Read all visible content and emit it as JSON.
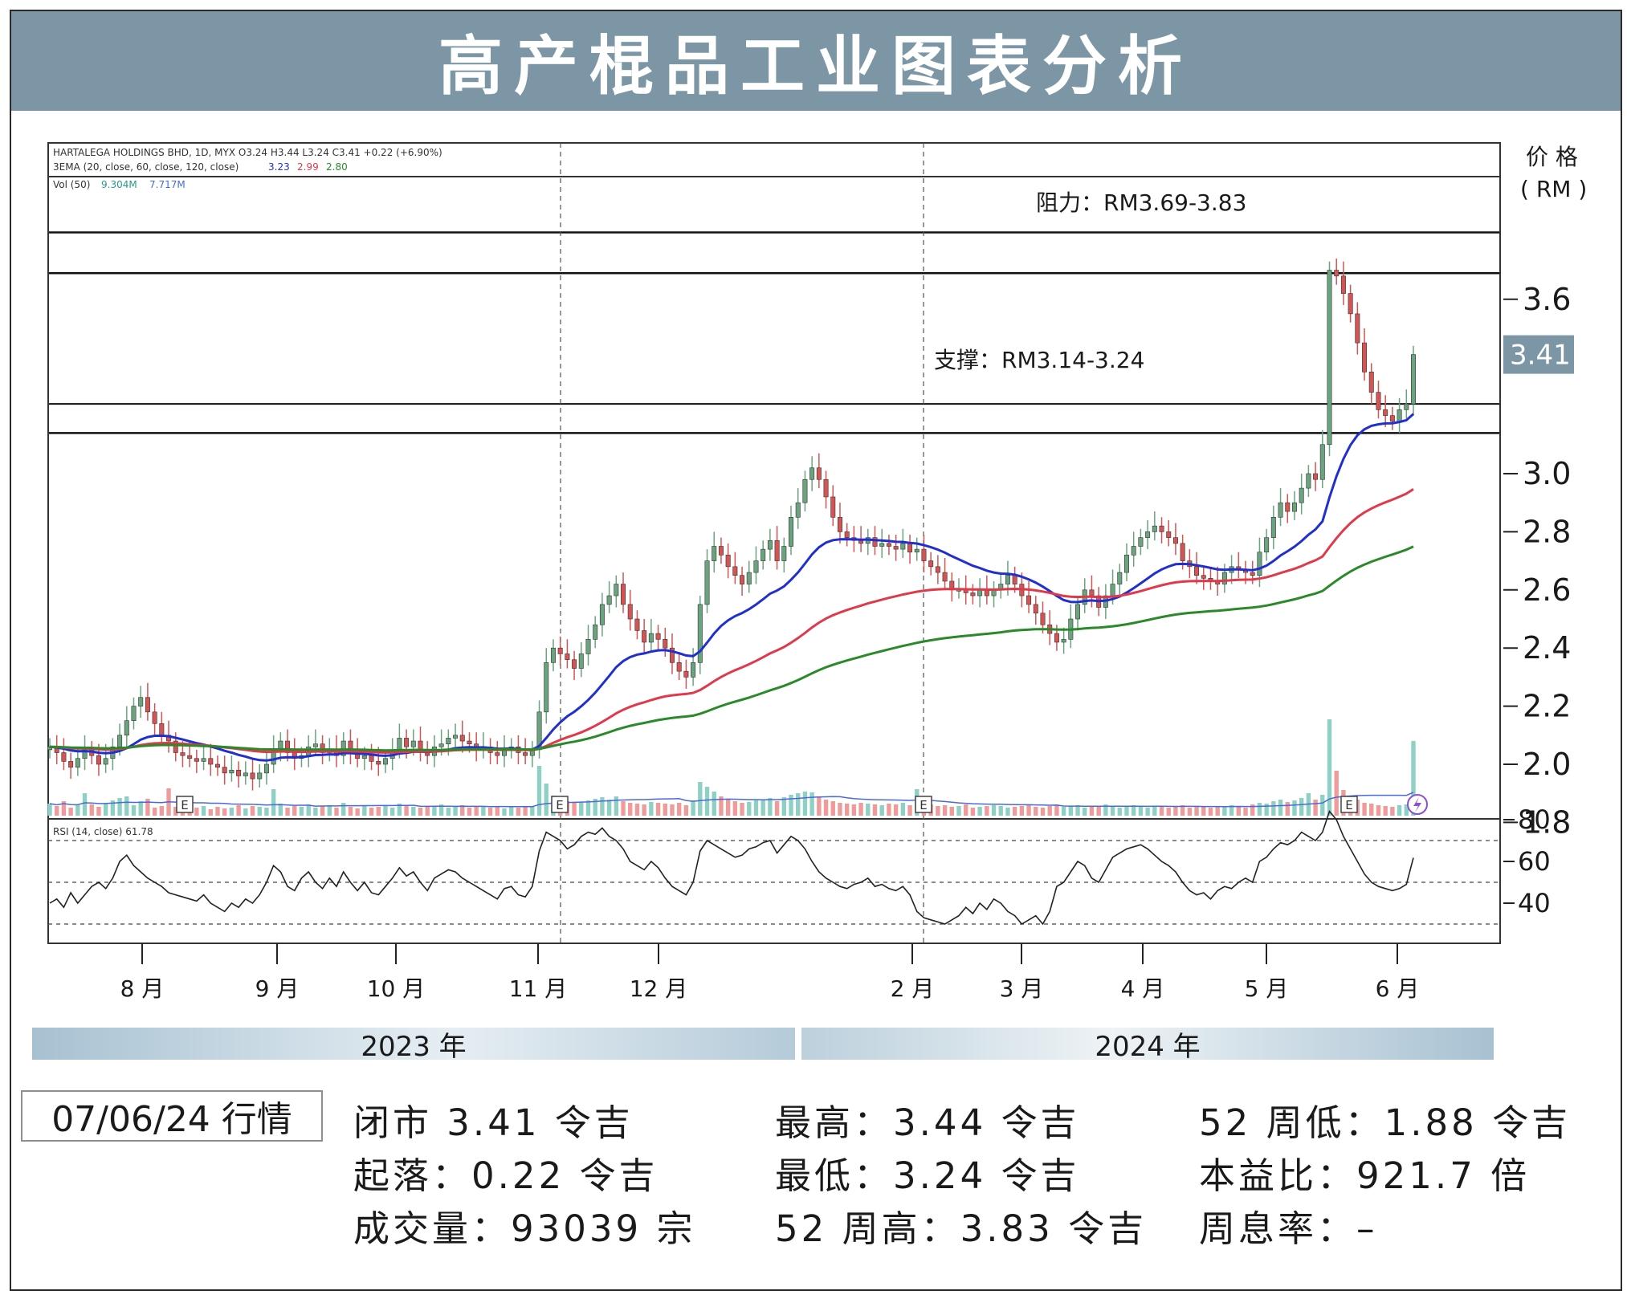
{
  "title": "高产棍品工业图表分析",
  "legend": {
    "line1": "HARTALEGA HOLDINGS BHD, 1D, MYX  O3.24  H3.44  L3.24  C3.41  +0.22 (+6.90%)",
    "line2_prefix": "3EMA (20, close, 60, close, 120, close)",
    "ema20_value": "3.23",
    "ema60_value": "2.99",
    "ema120_value": "2.80",
    "vol_prefix": "Vol (50)",
    "vol_value1": "9.304M",
    "vol_value2": "7.717M",
    "rsi_label": "RSI (14, close)  61.78"
  },
  "price_axis_title_1": "价 格",
  "price_axis_title_2": "( RM )",
  "last_price_badge": "3.41",
  "resistance_label": "阻力：RM3.69-3.83",
  "support_label": "支撑：RM3.14-3.24",
  "earnings_marker": "E",
  "dividend_marker": "E",
  "years": [
    "2023 年",
    "2024 年"
  ],
  "date_label": "07/06/24 行情",
  "stats": {
    "close": "闭市 3.41 令吉",
    "change": "起落：0.22 令吉",
    "volume": "成交量：93039 宗",
    "high": "最高：3.44 令吉",
    "low": "最低：3.24 令吉",
    "high52": "52 周高：3.83 令吉",
    "low52": "52 周低：1.88 令吉",
    "pe": "本益比：921.7 倍",
    "yield": "周息率：–"
  },
  "colors": {
    "title_bar": "#7d96a6",
    "up_candle": "#6aa47e",
    "down_candle": "#d45454",
    "ema20": "#1f2fd0",
    "ema60": "#e0394a",
    "ema120": "#2a8a2a",
    "vol_up": "#8ed0c4",
    "vol_down": "#f09a9a",
    "vol_ma": "#4a6ad8",
    "price_badge": "#7d96a6"
  },
  "chart_data": {
    "type": "candlestick",
    "title": "HARTALEGA HOLDINGS BHD, 1D, MYX",
    "x_months": [
      "8 月",
      "9 月",
      "10 月",
      "11 月",
      "12 月",
      "2 月",
      "3 月",
      "4 月",
      "5 月",
      "6 月"
    ],
    "price_ticks": [
      3.6,
      3.0,
      2.8,
      2.6,
      2.4,
      2.2,
      2.0,
      1.8
    ],
    "price_tick_labels": [
      "3.6",
      "3.0",
      "2.8",
      "2.6",
      "2.4",
      "2.2",
      "2.0",
      "1.8"
    ],
    "price_range": [
      1.62,
      3.82
    ],
    "rsi_ticks": [
      80,
      60,
      40
    ],
    "rsi_tick_labels": [
      "80",
      "60",
      "40"
    ],
    "rsi_range": [
      28,
      85
    ],
    "rsi_levels": [
      70,
      50,
      30
    ],
    "resistance_zone": [
      3.69,
      3.83
    ],
    "support_zone": [
      3.14,
      3.24
    ],
    "last": {
      "open": 3.24,
      "high": 3.44,
      "low": 3.24,
      "close": 3.41,
      "change": 0.22,
      "change_pct": 6.9
    },
    "close_series": [
      2.06,
      2.04,
      2.01,
      1.99,
      2.02,
      2.05,
      2.03,
      2.0,
      2.02,
      2.06,
      2.1,
      2.15,
      2.2,
      2.23,
      2.18,
      2.14,
      2.1,
      2.08,
      2.04,
      2.03,
      2.02,
      2.01,
      2.02,
      2.0,
      1.99,
      1.97,
      1.98,
      1.96,
      1.97,
      1.95,
      1.97,
      2.0,
      2.05,
      2.08,
      2.04,
      2.02,
      2.03,
      2.06,
      2.07,
      2.04,
      2.05,
      2.03,
      2.08,
      2.04,
      2.02,
      2.03,
      2.01,
      2.0,
      2.02,
      2.05,
      2.09,
      2.06,
      2.08,
      2.05,
      2.03,
      2.06,
      2.07,
      2.09,
      2.1,
      2.08,
      2.07,
      2.05,
      2.06,
      2.04,
      2.03,
      2.05,
      2.06,
      2.04,
      2.03,
      2.05,
      2.18,
      2.35,
      2.4,
      2.38,
      2.36,
      2.33,
      2.38,
      2.43,
      2.48,
      2.55,
      2.58,
      2.62,
      2.55,
      2.5,
      2.46,
      2.42,
      2.45,
      2.43,
      2.4,
      2.35,
      2.32,
      2.3,
      2.35,
      2.55,
      2.7,
      2.75,
      2.72,
      2.68,
      2.65,
      2.62,
      2.66,
      2.7,
      2.74,
      2.77,
      2.7,
      2.75,
      2.85,
      2.9,
      2.98,
      3.02,
      2.98,
      2.92,
      2.85,
      2.8,
      2.78,
      2.77,
      2.76,
      2.78,
      2.75,
      2.76,
      2.75,
      2.74,
      2.76,
      2.73,
      2.74,
      2.7,
      2.68,
      2.66,
      2.63,
      2.6,
      2.6,
      2.59,
      2.58,
      2.6,
      2.58,
      2.6,
      2.62,
      2.65,
      2.62,
      2.58,
      2.55,
      2.52,
      2.48,
      2.45,
      2.42,
      2.43,
      2.5,
      2.55,
      2.6,
      2.58,
      2.54,
      2.58,
      2.62,
      2.66,
      2.72,
      2.75,
      2.78,
      2.8,
      2.82,
      2.8,
      2.78,
      2.76,
      2.7,
      2.68,
      2.65,
      2.64,
      2.63,
      2.62,
      2.66,
      2.68,
      2.67,
      2.66,
      2.65,
      2.73,
      2.78,
      2.85,
      2.9,
      2.87,
      2.9,
      2.95,
      3.0,
      2.98,
      3.1,
      3.7,
      3.68,
      3.62,
      3.55,
      3.45,
      3.35,
      3.28,
      3.22,
      3.2,
      3.18,
      3.22,
      3.24,
      3.41
    ],
    "rsi_series": [
      40,
      42,
      38,
      45,
      40,
      44,
      48,
      50,
      47,
      52,
      60,
      63,
      58,
      55,
      52,
      50,
      48,
      45,
      44,
      43,
      42,
      41,
      44,
      40,
      38,
      36,
      40,
      38,
      42,
      40,
      44,
      50,
      58,
      55,
      48,
      46,
      52,
      55,
      50,
      47,
      52,
      48,
      55,
      50,
      46,
      50,
      45,
      44,
      48,
      52,
      57,
      53,
      55,
      50,
      46,
      52,
      54,
      56,
      55,
      52,
      50,
      48,
      46,
      44,
      42,
      47,
      48,
      44,
      43,
      48,
      65,
      74,
      72,
      70,
      66,
      68,
      72,
      74,
      73,
      76,
      72,
      70,
      66,
      60,
      58,
      56,
      60,
      57,
      52,
      48,
      46,
      44,
      50,
      65,
      70,
      68,
      66,
      64,
      62,
      63,
      66,
      67,
      69,
      70,
      64,
      68,
      72,
      70,
      66,
      60,
      55,
      52,
      50,
      48,
      47,
      49,
      50,
      52,
      48,
      49,
      47,
      46,
      48,
      44,
      36,
      33,
      32,
      31,
      30,
      32,
      34,
      38,
      35,
      40,
      37,
      42,
      40,
      36,
      34,
      30,
      32,
      34,
      30,
      36,
      48,
      50,
      55,
      60,
      58,
      52,
      50,
      56,
      62,
      64,
      66,
      67,
      68,
      66,
      63,
      60,
      58,
      55,
      50,
      46,
      44,
      45,
      42,
      46,
      48,
      47,
      50,
      52,
      50,
      60,
      62,
      66,
      69,
      68,
      70,
      74,
      72,
      70,
      74,
      84,
      80,
      72,
      66,
      60,
      54,
      50,
      48,
      47,
      46,
      47,
      49,
      61.78
    ],
    "volume_series_m": [
      1.5,
      1.2,
      1.8,
      1.0,
      1.3,
      2.8,
      1.4,
      1.1,
      1.6,
      1.9,
      2.2,
      2.4,
      1.3,
      1.8,
      2.1,
      1.0,
      1.2,
      3.4,
      1.1,
      1.0,
      0.9,
      1.0,
      1.2,
      0.8,
      1.1,
      0.9,
      1.0,
      1.3,
      0.9,
      1.2,
      1.1,
      1.0,
      3.3,
      1.5,
      1.0,
      1.2,
      1.1,
      1.4,
      1.0,
      1.2,
      1.3,
      1.0,
      1.6,
      1.1,
      0.9,
      1.2,
      1.0,
      1.1,
      1.3,
      1.0,
      1.5,
      1.2,
      1.1,
      1.0,
      1.2,
      1.1,
      1.4,
      1.0,
      1.1,
      1.3,
      1.0,
      1.2,
      1.1,
      1.0,
      1.2,
      0.9,
      1.1,
      1.0,
      1.2,
      1.1,
      6.2,
      4.0,
      2.5,
      2.0,
      1.8,
      1.6,
      1.7,
      1.9,
      2.1,
      2.3,
      2.0,
      2.4,
      1.8,
      1.6,
      1.5,
      1.4,
      1.7,
      1.6,
      1.5,
      1.4,
      1.6,
      1.3,
      1.9,
      4.2,
      3.6,
      3.0,
      2.4,
      2.0,
      1.8,
      1.6,
      1.7,
      1.9,
      2.0,
      2.2,
      1.8,
      2.3,
      2.6,
      2.8,
      3.0,
      2.9,
      2.4,
      2.0,
      1.8,
      1.6,
      1.5,
      1.4,
      1.6,
      1.5,
      1.4,
      1.3,
      1.5,
      1.4,
      1.6,
      1.3,
      3.3,
      1.5,
      1.4,
      1.2,
      1.3,
      1.1,
      1.2,
      1.4,
      1.0,
      1.1,
      1.2,
      1.3,
      1.2,
      1.0,
      1.1,
      1.2,
      1.3,
      1.1,
      1.0,
      1.2,
      1.4,
      1.1,
      1.2,
      1.3,
      1.0,
      1.1,
      1.2,
      1.4,
      1.1,
      1.0,
      1.2,
      1.3,
      1.1,
      1.0,
      1.2,
      1.1,
      1.0,
      1.1,
      1.3,
      1.0,
      1.2,
      1.1,
      1.0,
      1.2,
      1.1,
      1.3,
      1.2,
      1.0,
      1.4,
      1.6,
      1.5,
      1.8,
      2.0,
      1.7,
      1.9,
      2.2,
      2.8,
      2.0,
      2.6,
      12.0,
      5.6,
      3.2,
      2.4,
      2.0,
      1.6,
      1.5,
      1.3,
      1.2,
      1.1,
      1.3,
      1.4,
      9.304
    ]
  }
}
